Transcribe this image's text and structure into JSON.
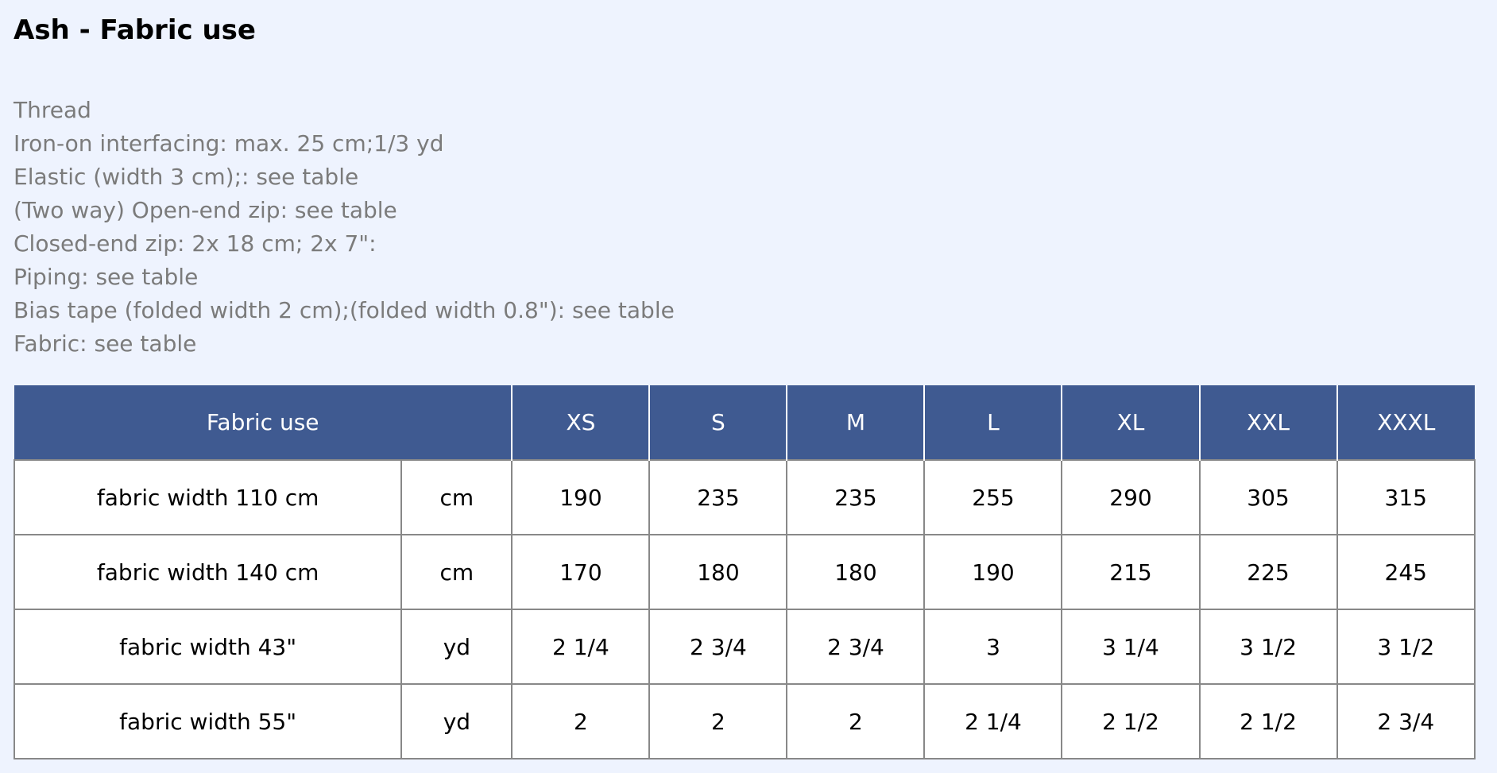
{
  "header": {
    "title": "Ash - Fabric use"
  },
  "notes": [
    "Thread",
    "Iron-on interfacing: max. 25 cm;1/3 yd",
    "Elastic (width 3 cm);: see table",
    "(Two way) Open-end zip: see table",
    "Closed-end zip: 2x 18 cm; 2x 7\":",
    "Piping: see table",
    "Bias tape (folded width 2 cm);(folded width 0.8\"): see table",
    "Fabric: see table"
  ],
  "table": {
    "columns": [
      "Fabric use",
      "XS",
      "S",
      "M",
      "L",
      "XL",
      "XXL",
      "XXXL"
    ],
    "rows": [
      [
        "fabric width 110 cm",
        "cm",
        "190",
        "235",
        "235",
        "255",
        "290",
        "305",
        "315"
      ],
      [
        "fabric width 140 cm",
        "cm",
        "170",
        "180",
        "180",
        "190",
        "215",
        "225",
        "245"
      ],
      [
        "fabric width 43\"",
        "yd",
        "2 1/4",
        "2 3/4",
        "2 3/4",
        "3",
        "3 1/4",
        "3 1/2",
        "3 1/2"
      ],
      [
        "fabric width 55\"",
        "yd",
        "2",
        "2",
        "2",
        "2 1/4",
        "2 1/2",
        "2 1/2",
        "2 3/4"
      ]
    ]
  }
}
